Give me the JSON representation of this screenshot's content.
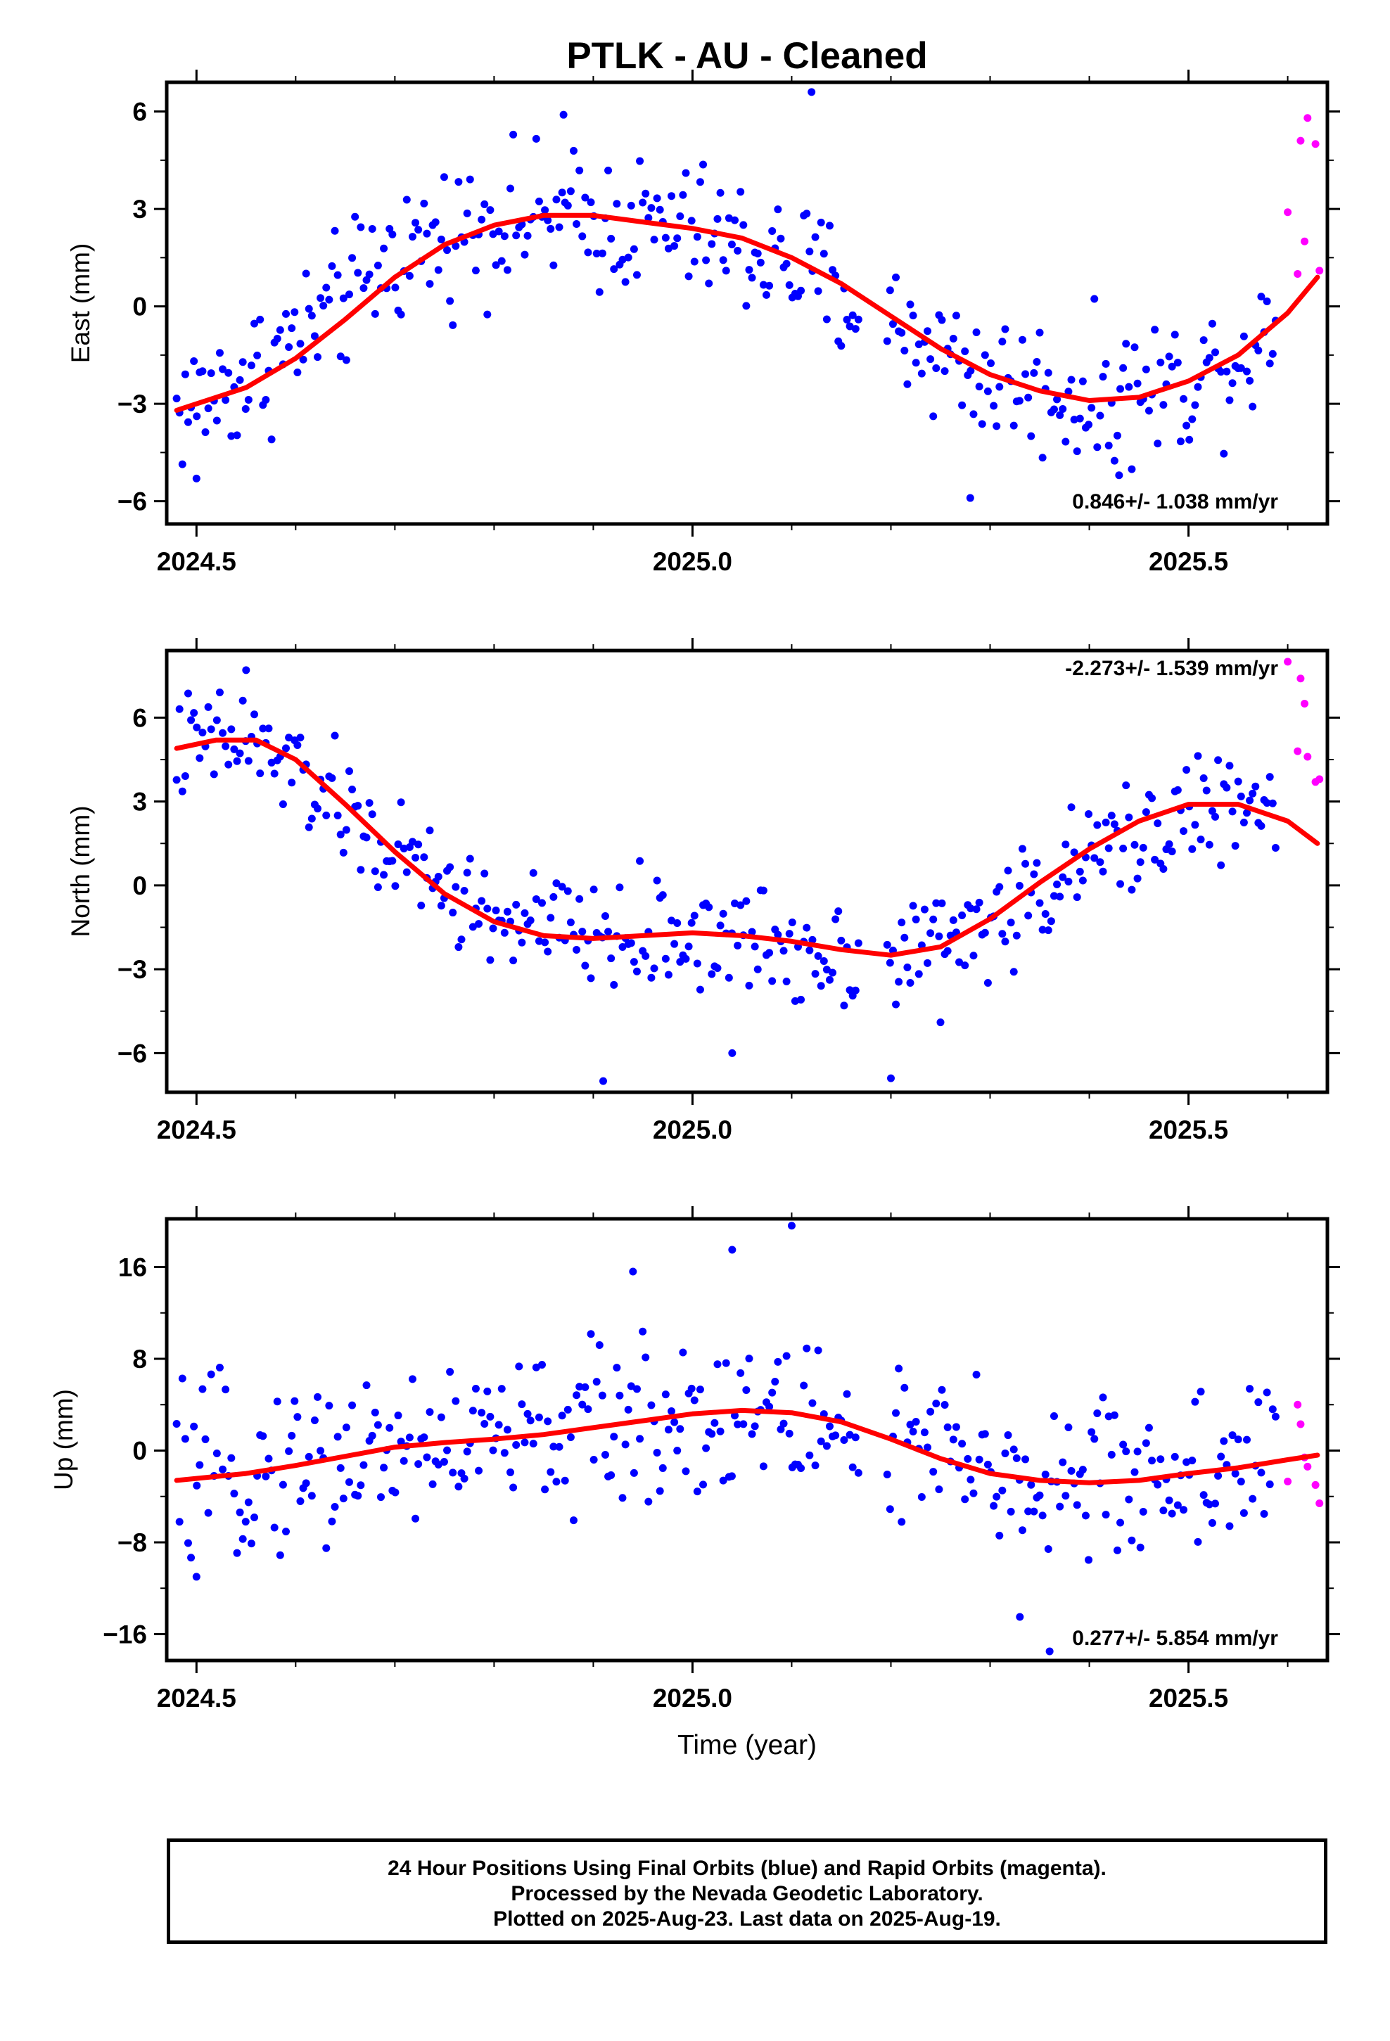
{
  "title": "PTLK  - AU - Cleaned",
  "chart_data": [
    {
      "type": "scatter",
      "ylabel": "East (mm)",
      "xlabel": "",
      "xlim": [
        2024.47,
        2025.64
      ],
      "ylim": [
        -6.7,
        6.9
      ],
      "xticks": [
        2024.5,
        2025.0,
        2025.5
      ],
      "xtick_labels": [
        "2024.5",
        "2025.0",
        "2025.5"
      ],
      "yticks": [
        -6,
        -3,
        0,
        3,
        6
      ],
      "ytick_labels": [
        "−6",
        "−3",
        "0",
        "3",
        "6"
      ],
      "rate_text": "0.846+/- 1.038 mm/yr",
      "rate_position": "bottom-right",
      "series": [
        {
          "name": "Final Orbits",
          "color": "#0000ff",
          "kind": "points",
          "anchors": [
            [
              2024.48,
              -3.2
            ],
            [
              2024.55,
              -2.2
            ],
            [
              2024.62,
              -0.6
            ],
            [
              2024.7,
              1.6
            ],
            [
              2024.8,
              2.7
            ],
            [
              2024.9,
              2.6
            ],
            [
              2025.0,
              2.3
            ],
            [
              2025.1,
              1.3
            ],
            [
              2025.2,
              -0.6
            ],
            [
              2025.3,
              -2.2
            ],
            [
              2025.4,
              -2.9
            ],
            [
              2025.5,
              -2.3
            ],
            [
              2025.59,
              -0.8
            ]
          ],
          "noise": 1.25,
          "outliers": [
            [
              2025.12,
              6.6
            ],
            [
              2024.87,
              5.9
            ],
            [
              2025.28,
              -5.9
            ],
            [
              2024.5,
              -5.3
            ],
            [
              2025.43,
              -5.2
            ]
          ]
        },
        {
          "name": "Rapid Orbits",
          "color": "#ff00ff",
          "kind": "points",
          "points": [
            [
              2025.6,
              2.9
            ],
            [
              2025.61,
              1.0
            ],
            [
              2025.613,
              5.1
            ],
            [
              2025.617,
              2.0
            ],
            [
              2025.62,
              5.8
            ],
            [
              2025.628,
              5.0
            ],
            [
              2025.632,
              1.1
            ]
          ]
        },
        {
          "name": "Fit",
          "color": "#ff0000",
          "kind": "line",
          "points": [
            [
              2024.48,
              -3.2
            ],
            [
              2024.55,
              -2.5
            ],
            [
              2024.6,
              -1.6
            ],
            [
              2024.65,
              -0.4
            ],
            [
              2024.7,
              0.9
            ],
            [
              2024.75,
              1.9
            ],
            [
              2024.8,
              2.5
            ],
            [
              2024.85,
              2.8
            ],
            [
              2024.9,
              2.8
            ],
            [
              2024.95,
              2.6
            ],
            [
              2025.0,
              2.4
            ],
            [
              2025.05,
              2.1
            ],
            [
              2025.1,
              1.5
            ],
            [
              2025.15,
              0.7
            ],
            [
              2025.2,
              -0.3
            ],
            [
              2025.25,
              -1.3
            ],
            [
              2025.3,
              -2.1
            ],
            [
              2025.35,
              -2.6
            ],
            [
              2025.4,
              -2.9
            ],
            [
              2025.45,
              -2.8
            ],
            [
              2025.5,
              -2.3
            ],
            [
              2025.55,
              -1.5
            ],
            [
              2025.6,
              -0.2
            ],
            [
              2025.63,
              0.9
            ]
          ]
        }
      ]
    },
    {
      "type": "scatter",
      "ylabel": "North (mm)",
      "xlabel": "",
      "xlim": [
        2024.47,
        2025.64
      ],
      "ylim": [
        -7.4,
        8.4
      ],
      "xticks": [
        2024.5,
        2025.0,
        2025.5
      ],
      "xtick_labels": [
        "2024.5",
        "2025.0",
        "2025.5"
      ],
      "yticks": [
        -6,
        -3,
        0,
        3,
        6
      ],
      "ytick_labels": [
        "−6",
        "−3",
        "0",
        "3",
        "6"
      ],
      "rate_text": "-2.273+/- 1.539 mm/yr",
      "rate_position": "top-right",
      "series": [
        {
          "name": "Final Orbits",
          "color": "#0000ff",
          "kind": "points",
          "anchors": [
            [
              2024.48,
              4.9
            ],
            [
              2024.55,
              5.2
            ],
            [
              2024.62,
              3.5
            ],
            [
              2024.7,
              1.0
            ],
            [
              2024.8,
              -1.2
            ],
            [
              2024.9,
              -1.8
            ],
            [
              2025.0,
              -1.8
            ],
            [
              2025.1,
              -2.2
            ],
            [
              2025.2,
              -2.5
            ],
            [
              2025.3,
              -1.4
            ],
            [
              2025.4,
              0.9
            ],
            [
              2025.5,
              2.7
            ],
            [
              2025.58,
              2.6
            ]
          ],
          "noise": 1.15,
          "outliers": [
            [
              2024.55,
              7.7
            ],
            [
              2024.91,
              -7.0
            ],
            [
              2025.2,
              -6.9
            ],
            [
              2025.04,
              -6.0
            ],
            [
              2025.25,
              -4.9
            ]
          ]
        },
        {
          "name": "Rapid Orbits",
          "color": "#ff00ff",
          "kind": "points",
          "points": [
            [
              2025.6,
              8.0
            ],
            [
              2025.61,
              4.8
            ],
            [
              2025.613,
              7.4
            ],
            [
              2025.617,
              6.5
            ],
            [
              2025.62,
              4.6
            ],
            [
              2025.628,
              3.7
            ],
            [
              2025.632,
              3.8
            ]
          ]
        },
        {
          "name": "Fit",
          "color": "#ff0000",
          "kind": "line",
          "points": [
            [
              2024.48,
              4.9
            ],
            [
              2024.52,
              5.2
            ],
            [
              2024.56,
              5.2
            ],
            [
              2024.6,
              4.5
            ],
            [
              2024.65,
              2.9
            ],
            [
              2024.7,
              1.2
            ],
            [
              2024.75,
              -0.3
            ],
            [
              2024.8,
              -1.3
            ],
            [
              2024.85,
              -1.8
            ],
            [
              2024.9,
              -1.9
            ],
            [
              2024.95,
              -1.8
            ],
            [
              2025.0,
              -1.7
            ],
            [
              2025.05,
              -1.8
            ],
            [
              2025.1,
              -2.0
            ],
            [
              2025.15,
              -2.3
            ],
            [
              2025.2,
              -2.5
            ],
            [
              2025.25,
              -2.2
            ],
            [
              2025.3,
              -1.2
            ],
            [
              2025.35,
              0.1
            ],
            [
              2025.4,
              1.3
            ],
            [
              2025.45,
              2.3
            ],
            [
              2025.5,
              2.9
            ],
            [
              2025.55,
              2.9
            ],
            [
              2025.6,
              2.3
            ],
            [
              2025.63,
              1.5
            ]
          ]
        }
      ]
    },
    {
      "type": "scatter",
      "ylabel": "Up (mm)",
      "xlabel": "Time (year)",
      "xlim": [
        2024.47,
        2025.64
      ],
      "ylim": [
        -18.3,
        20.2
      ],
      "xticks": [
        2024.5,
        2025.0,
        2025.5
      ],
      "xtick_labels": [
        "2024.5",
        "2025.0",
        "2025.5"
      ],
      "yticks": [
        -16,
        -8,
        0,
        8,
        16
      ],
      "ytick_labels": [
        "−16",
        "−8",
        "0",
        "8",
        "16"
      ],
      "rate_text": "0.277+/- 5.854 mm/yr",
      "rate_position": "bottom-right",
      "series": [
        {
          "name": "Final Orbits",
          "color": "#0000ff",
          "kind": "points",
          "anchors": [
            [
              2024.48,
              -2.5
            ],
            [
              2024.55,
              -2.0
            ],
            [
              2024.62,
              -0.9
            ],
            [
              2024.7,
              0.3
            ],
            [
              2024.8,
              1.1
            ],
            [
              2024.9,
              2.0
            ],
            [
              2025.0,
              3.2
            ],
            [
              2025.1,
              3.0
            ],
            [
              2025.2,
              0.5
            ],
            [
              2025.3,
              -2.0
            ],
            [
              2025.4,
              -2.8
            ],
            [
              2025.5,
              -2.0
            ],
            [
              2025.58,
              -0.8
            ]
          ],
          "noise": 4.2,
          "outliers": [
            [
              2025.1,
              19.6
            ],
            [
              2025.04,
              17.5
            ],
            [
              2024.94,
              15.6
            ],
            [
              2025.36,
              -17.5
            ],
            [
              2025.33,
              -14.5
            ],
            [
              2024.5,
              -11.0
            ]
          ]
        },
        {
          "name": "Rapid Orbits",
          "color": "#ff00ff",
          "kind": "points",
          "points": [
            [
              2025.6,
              -2.7
            ],
            [
              2025.61,
              4.0
            ],
            [
              2025.613,
              2.3
            ],
            [
              2025.617,
              -0.6
            ],
            [
              2025.62,
              -1.4
            ],
            [
              2025.628,
              -3.0
            ],
            [
              2025.632,
              -4.6
            ]
          ]
        },
        {
          "name": "Fit",
          "color": "#ff0000",
          "kind": "line",
          "points": [
            [
              2024.48,
              -2.6
            ],
            [
              2024.55,
              -2.0
            ],
            [
              2024.6,
              -1.3
            ],
            [
              2024.65,
              -0.5
            ],
            [
              2024.7,
              0.3
            ],
            [
              2024.75,
              0.7
            ],
            [
              2024.8,
              1.0
            ],
            [
              2024.85,
              1.4
            ],
            [
              2024.9,
              2.0
            ],
            [
              2024.95,
              2.6
            ],
            [
              2025.0,
              3.2
            ],
            [
              2025.05,
              3.5
            ],
            [
              2025.1,
              3.3
            ],
            [
              2025.15,
              2.5
            ],
            [
              2025.2,
              1.0
            ],
            [
              2025.25,
              -0.7
            ],
            [
              2025.3,
              -2.0
            ],
            [
              2025.35,
              -2.6
            ],
            [
              2025.4,
              -2.8
            ],
            [
              2025.45,
              -2.6
            ],
            [
              2025.5,
              -2.0
            ],
            [
              2025.55,
              -1.5
            ],
            [
              2025.6,
              -0.8
            ],
            [
              2025.63,
              -0.4
            ]
          ]
        }
      ]
    }
  ],
  "footer": {
    "line1": "24 Hour Positions Using Final Orbits (blue) and Rapid Orbits (magenta).",
    "line2": "Processed by the Nevada Geodetic Laboratory.",
    "line3": "Plotted on 2025-Aug-23. Last data on 2025-Aug-19."
  }
}
